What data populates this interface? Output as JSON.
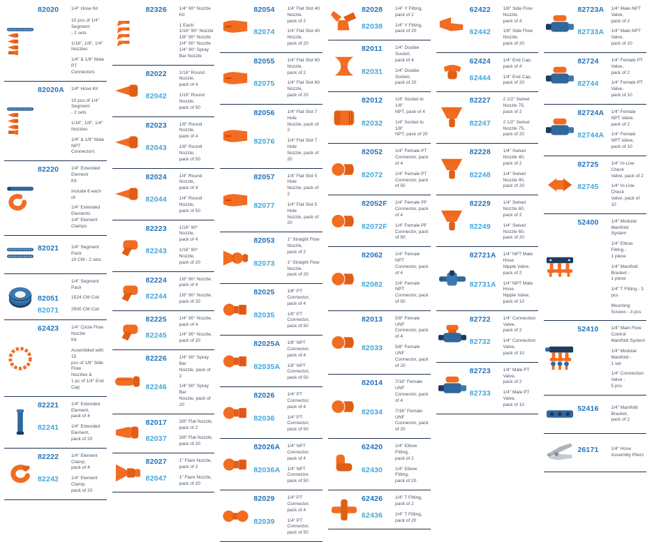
{
  "colors": {
    "part_number_primary": "#2272b9",
    "part_number_secondary": "#41a6dc",
    "description_text": "#4d5566",
    "divider": "#1b2f49",
    "product_orange": "#f26c21",
    "product_orange_dark": "#e05e15",
    "product_blue": "#31679a",
    "product_navy": "#1e3a5f"
  },
  "columns": [
    {
      "products": [
        {
          "icon": "hose-kit",
          "rows": [
            {
              "num": "82020",
              "desc": "1/4\" Hose Kit"
            },
            {
              "desc": "10 pcs of 1/4\" Segment\n- 2 sets"
            },
            {
              "desc": "1/16\", 1/8\", 1/4\" Nozzles"
            },
            {
              "desc": "1/4\" & 1/8\" Male PT\nConnectors"
            }
          ]
        },
        {
          "icon": "hose-kit",
          "rows": [
            {
              "num": "82020A",
              "desc": "1/4\" Hose Kit"
            },
            {
              "desc": "10 pcs of 1/4\" Segment\n- 2 sets"
            },
            {
              "desc": "1/16\", 1/8\", 1/4\" Nozzles"
            },
            {
              "desc": "1/4\" & 1/8\" Male NPT\nConnectors"
            }
          ]
        },
        {
          "icon": "extended-element-kit",
          "rows": [
            {
              "num": "82220",
              "desc": "1/4\" Extended Element\nKit"
            },
            {
              "desc": "Include 6 each of:"
            },
            {
              "desc": "1/4\" Extended Elements\n1/4\" Element Clamps"
            }
          ]
        },
        {
          "icon": "segment-pack",
          "rows": [
            {
              "num": "82021",
              "desc": "1/4\" Segment Pack\n10 CM - 2 sets"
            }
          ]
        },
        {
          "icon": "segment-coil",
          "rows": [
            {
              "desc": "1/4\" Segment Pack"
            },
            {
              "num": "82051",
              "desc": "1524 CM Coil"
            },
            {
              "num": "82071",
              "desc": "2500 CM Coil"
            }
          ]
        },
        {
          "icon": "circle-flow-nozzle",
          "rows": [
            {
              "num": "62423",
              "desc": "1/4\" Circle Flow Nozzle\nKit"
            },
            {
              "desc": "Assembled with 15\npcs of 1/8\" Side Flow\nNozzles &\n1 pc of 1/4\" End Cap"
            }
          ]
        },
        {
          "icon": "extended-element",
          "rows": [
            {
              "num": "82221",
              "desc": "1/4\" Extended Element,\npack of 4"
            },
            {
              "num": "82241",
              "desc": "1/4\" Extended Element,\npack of 20"
            }
          ]
        },
        {
          "icon": "element-clamp",
          "rows": [
            {
              "num": "82222",
              "desc": "1/4\" Element Clamp,\npack of 4"
            },
            {
              "num": "82242",
              "desc": "1/4\" Element Clamp,\npack of 20"
            }
          ]
        }
      ]
    },
    {
      "products": [
        {
          "icon": "nozzle-90-kit",
          "rows": [
            {
              "num": "82326",
              "desc": "1/4\" 90° Nozzle Kit"
            },
            {
              "desc": "1 Each:\n1/16\" 90° Nozzle\n1/8\" 90° Nozzle\n1/4\" 90° Nozzle\n1/4\" 90° Spray Bar Nozzle"
            }
          ]
        },
        {
          "icon": "round-nozzle",
          "rows": [
            {
              "num": "82022",
              "desc": "1/16\" Round Nozzle,\npack of 4"
            },
            {
              "num": "82042",
              "desc": "1/16\" Round Nozzle,\npack of 50"
            }
          ]
        },
        {
          "icon": "round-nozzle",
          "rows": [
            {
              "num": "82023",
              "desc": "1/8\" Round Nozzle,\npack of 4"
            },
            {
              "num": "82043",
              "desc": "1/8\" Round Nozzle,\npack of 50"
            }
          ]
        },
        {
          "icon": "round-nozzle",
          "rows": [
            {
              "num": "82024",
              "desc": "1/4\" Round Nozzle,\npack of 4"
            },
            {
              "num": "82044",
              "desc": "1/4\" Round Nozzle,\npack of 50"
            }
          ]
        },
        {
          "icon": "nozzle-90",
          "rows": [
            {
              "num": "82223",
              "desc": "1/16\" 90° Nozzle,\npack of 4"
            },
            {
              "num": "82243",
              "desc": "1/16\" 90° Nozzle,\npack of 20"
            }
          ]
        },
        {
          "icon": "nozzle-90",
          "rows": [
            {
              "num": "82224",
              "desc": "1/8\" 90° Nozzle,\npack of 4"
            },
            {
              "num": "82244",
              "desc": "1/8\" 90° Nozzle,\npack of 20"
            }
          ]
        },
        {
          "icon": "nozzle-90",
          "rows": [
            {
              "num": "82225",
              "desc": "1/4\" 90° Nozzle,\npack of 4"
            },
            {
              "num": "82245",
              "desc": "1/4\" 90° Nozzle,\npack of 20"
            }
          ]
        },
        {
          "icon": "spray-bar-nozzle",
          "rows": [
            {
              "num": "82226",
              "desc": "1/4\" 90° Spray Bar\nNozzle, pack of 2"
            },
            {
              "num": "82246",
              "desc": "1/4\" 90° Spray Bar\nNozzle, pack of 20"
            }
          ]
        },
        {
          "icon": "flat-nozzle",
          "rows": [
            {
              "num": "82017",
              "desc": "3/8\" Flat Nozzle,\npack of 2"
            },
            {
              "num": "82037",
              "desc": "3/8\" Flat Nozzle,\npack of 20"
            }
          ]
        },
        {
          "icon": "flare-nozzle",
          "rows": [
            {
              "num": "82027",
              "desc": "1\" Flare Nozzle,\npack of 2"
            },
            {
              "num": "82047",
              "desc": "1\" Flare Nozzle,\npack of 20"
            }
          ]
        }
      ]
    },
    {
      "products": [
        {
          "icon": "flat-slot-nozzle",
          "rows": [
            {
              "num": "82054",
              "desc": "1/4\" Flat Slot 40 Nozzle,\npack of 2"
            },
            {
              "num": "82074",
              "desc": "1/4\" Flat Slot 40 Nozzle,\npack of 20"
            }
          ]
        },
        {
          "icon": "flat-slot-nozzle",
          "rows": [
            {
              "num": "82055",
              "desc": "1/4\" Flat Slot 60 Nozzle,\npack of 2"
            },
            {
              "num": "82075",
              "desc": "1/4\" Flat Slot 60 Nozzle,\npack of 20"
            }
          ]
        },
        {
          "icon": "flat-slot-nozzle",
          "rows": [
            {
              "num": "82056",
              "desc": "1/4\" Flat Slot 7 Hole\nNozzle, pack of 2"
            },
            {
              "num": "82076",
              "desc": "1/4\" Flat Slot 7 Hole\nNozzle, pack of 20"
            }
          ]
        },
        {
          "icon": "flat-slot-nozzle",
          "rows": [
            {
              "num": "82057",
              "desc": "1/4\" Flat Slot 5 Hole\nNozzle, pack of 2"
            },
            {
              "num": "82077",
              "desc": "1/4\" Flat Slot 5 Hole\nNozzle, pack of 20"
            }
          ]
        },
        {
          "icon": "straight-flow-nozzle",
          "rows": [
            {
              "num": "82053",
              "desc": "1\" Straight Flow Nozzle,\npack of 2"
            },
            {
              "num": "82073",
              "desc": "1\" Straight Flow Nozzle,\npack of 20"
            }
          ]
        },
        {
          "icon": "male-connector",
          "rows": [
            {
              "num": "82025",
              "desc": "1/8\" PT Connector,\npack of 4"
            },
            {
              "num": "82035",
              "desc": "1/8\" PT Connector,\npack of 50"
            }
          ]
        },
        {
          "icon": "male-connector",
          "rows": [
            {
              "num": "82025A",
              "desc": "1/8\" NPT Connector,\npack of 4"
            },
            {
              "num": "82035A",
              "desc": "1/8\" NPT Connector,\npack of 50"
            }
          ]
        },
        {
          "icon": "male-connector",
          "rows": [
            {
              "num": "82026",
              "desc": "1/4\" PT Connector,\npack of 4"
            },
            {
              "num": "82036",
              "desc": "1/4\" PT Connector,\npack of 50"
            }
          ]
        },
        {
          "icon": "male-connector",
          "rows": [
            {
              "num": "82026A",
              "desc": "1/4\" NPT Connector,\npack of 4"
            },
            {
              "num": "82036A",
              "desc": "1/4\" NPT Connector,\npack of 50"
            }
          ]
        },
        {
          "icon": "double-connector",
          "rows": [
            {
              "num": "82029",
              "desc": "1/4\" PT Connector,\npack of 4"
            },
            {
              "num": "82039",
              "desc": "1/4\" PT Connector,\npack of 50"
            }
          ]
        }
      ]
    },
    {
      "products": [
        {
          "icon": "y-fitting",
          "rows": [
            {
              "num": "82028",
              "desc": "1/4\" Y Fitting,\npack of 2"
            },
            {
              "num": "82038",
              "desc": "1/4\" Y Fitting,\npack of 20"
            }
          ]
        },
        {
          "icon": "double-socket",
          "rows": [
            {
              "num": "82011",
              "desc": "1/4\" Double Socket,\npack of 4"
            },
            {
              "num": "82031",
              "desc": "1/4\" Double Socket,\npack of 20"
            }
          ]
        },
        {
          "icon": "socket-adapter",
          "rows": [
            {
              "num": "82012",
              "desc": "1/4\" Socket to 1/8\"\nNPT, pack of 4"
            },
            {
              "num": "82032",
              "desc": "1/4\" Socket to 1/8\"\nNPT, pack of 20"
            }
          ]
        },
        {
          "icon": "female-connector",
          "rows": [
            {
              "num": "82052",
              "desc": "1/4\" Female PT\nConnector, pack of 4"
            },
            {
              "num": "82072",
              "desc": "1/4\" Female PT\nConnector, pack of 50"
            }
          ]
        },
        {
          "icon": "female-connector",
          "rows": [
            {
              "num": "82052F",
              "desc": "1/4\" Female PF\nConnector, pack of 4"
            },
            {
              "num": "82072F",
              "desc": "1/4\" Female PF\nConnector, pack of 50"
            }
          ]
        },
        {
          "icon": "female-connector",
          "rows": [
            {
              "num": "82062",
              "desc": "1/4\" Female NPT\nConnector, pack of 4"
            },
            {
              "num": "82082",
              "desc": "1/4\" Female NPT\nConnector, pack of 50"
            }
          ]
        },
        {
          "icon": "female-connector",
          "rows": [
            {
              "num": "82013",
              "desc": "5/8\" Female UNF\nConnector, pack of 4"
            },
            {
              "num": "82033",
              "desc": "5/8\" Female UNF\nConnector, pack of 20"
            }
          ]
        },
        {
          "icon": "female-connector",
          "rows": [
            {
              "num": "82014",
              "desc": "7/16\" Female UNF\nConnector, pack of 4"
            },
            {
              "num": "82034",
              "desc": "7/16\" Female UNF\nConnector, pack of 20"
            }
          ]
        },
        {
          "icon": "elbow-fitting",
          "rows": [
            {
              "num": "62420",
              "desc": "1/4\" Elbow Fitting,\npack of 2"
            },
            {
              "num": "62430",
              "desc": "1/4\" Elbow Fitting,\npack of 20"
            }
          ]
        },
        {
          "icon": "t-fitting",
          "rows": [
            {
              "num": "62426",
              "desc": "1/4\" T Fitting,\npack of 2"
            },
            {
              "num": "62436",
              "desc": "1/4\" T Fitting,\npack of 20"
            }
          ]
        }
      ]
    },
    {
      "products": [
        {
          "icon": "side-flow-nozzle",
          "rows": [
            {
              "num": "62422",
              "desc": "1/8\" Side Flow Nozzle,\npack of 4"
            },
            {
              "num": "62442",
              "desc": "1/8\" Side Flow Nozzle,\npack of 20"
            }
          ]
        },
        {
          "icon": "end-cap",
          "rows": [
            {
              "num": "62424",
              "desc": "1/4\" End Cap,\npack of 4"
            },
            {
              "num": "62444",
              "desc": "1/4\" End Cap,\npack of 20"
            }
          ]
        },
        {
          "icon": "swivel-nozzle",
          "rows": [
            {
              "num": "82227",
              "desc": "2 1/2\" Swivel Nozzle 75,\npack of 2"
            },
            {
              "num": "82247",
              "desc": "2 1/2\" Swivel Nozzle 75,\npack of 20"
            }
          ]
        },
        {
          "icon": "swivel-nozzle",
          "rows": [
            {
              "num": "82228",
              "desc": "1/4\" Swivel Nozzle 40,\npack of 2"
            },
            {
              "num": "82248",
              "desc": "1/4\" Swivel Nozzle 40,\npack of 20"
            }
          ]
        },
        {
          "icon": "swivel-nozzle",
          "rows": [
            {
              "num": "82229",
              "desc": "1/4\" Swivel Nozzle 60,\npack of 2"
            },
            {
              "num": "82249",
              "desc": "1/4\" Swivel Nozzle 60,\npack of 20"
            }
          ]
        },
        {
          "icon": "hose-nipple-valve",
          "rows": [
            {
              "num": "82721A",
              "desc": "1/4\" NPT Male Hose\nNipple Valve, pack of 2"
            },
            {
              "num": "82731A",
              "desc": "1/4\" NPT Male Hose\nNipple Valve, pack of 10"
            }
          ]
        },
        {
          "icon": "connection-valve",
          "rows": [
            {
              "num": "82722",
              "desc": "1/4\" Connection Valve,\npack of 2"
            },
            {
              "num": "82732",
              "desc": "1/4\" Connection Valve,\npack of 10"
            }
          ]
        },
        {
          "icon": "pt-valve",
          "rows": [
            {
              "num": "82723",
              "desc": "1/4\" Male PT Valve,\npack of 2"
            },
            {
              "num": "82733",
              "desc": "1/4\" Male PT Valve,\npack of 10"
            }
          ]
        }
      ]
    },
    {
      "products": [
        {
          "icon": "pt-valve",
          "rows": [
            {
              "num": "82723A",
              "desc": "1/4\" Male NPT Valve,\npack of 2"
            },
            {
              "num": "82733A",
              "desc": "1/4\" Male NPT Valve,\npack of 10"
            }
          ]
        },
        {
          "icon": "pt-valve",
          "rows": [
            {
              "num": "82724",
              "desc": "1/4\" Female PT Valve,\npack of 2"
            },
            {
              "num": "82744",
              "desc": "1/4\" Female PT Valve,\npack of 10"
            }
          ]
        },
        {
          "icon": "pt-valve",
          "rows": [
            {
              "num": "82724A",
              "desc": "1/4\" Female NPT Valve,\npack of 2"
            },
            {
              "num": "82744A",
              "desc": "1/4\" Female NPT Valve,\npack of 10"
            }
          ]
        },
        {
          "icon": "check-valve",
          "rows": [
            {
              "num": "82725",
              "desc": "1/4\" In-Line Check\nValve, pack of 2"
            },
            {
              "num": "82745",
              "desc": "1/4\" In-Line Check\nValve, pack of 10"
            }
          ]
        },
        {
          "icon": "modular-manifold",
          "rows": [
            {
              "num": "52400",
              "desc": "1/4\" Modular Manifold\nSystem"
            },
            {
              "desc": "1/4\" Elbow Fitting -\n1 piece"
            },
            {
              "desc": "1/4\" Manifold Bracket -\n1 piece"
            },
            {
              "desc": "1/4\" T Fitting - 3 pcs"
            },
            {
              "desc": "Mounting Screws - 3 pcs"
            }
          ]
        },
        {
          "icon": "flow-control-manifold",
          "rows": [
            {
              "num": "52410",
              "desc": "1/4\" Main Flow Control\nManifold System"
            },
            {
              "desc": "1/4\" Modular Manifold -\n1 set"
            },
            {
              "desc": "1/4\" Connection Valve -\n5 pcs"
            }
          ]
        },
        {
          "icon": "manifold-bracket",
          "rows": [
            {
              "num": "52416",
              "desc": "1/4\" Manifold Bracket,\npack of 2"
            }
          ]
        },
        {
          "icon": "hose-assembly-pliers",
          "rows": [
            {
              "num": "26171",
              "desc": "1/4\" Hose Assembly Pliers"
            }
          ]
        }
      ]
    }
  ]
}
